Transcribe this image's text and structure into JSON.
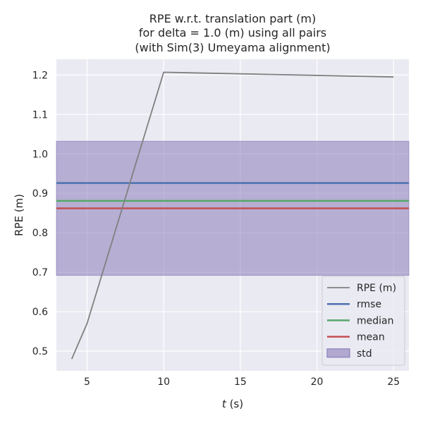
{
  "chart_data": {
    "type": "line",
    "title": "RPE w.r.t. translation part (m)",
    "subtitle_lines": [
      "for delta = 1.0 (m) using all pairs",
      "(with Sim(3) Umeyama alignment)"
    ],
    "xlabel_var": "t",
    "xlabel_unit": " (s)",
    "ylabel": "RPE (m)",
    "xlim": [
      3,
      26
    ],
    "ylim": [
      0.45,
      1.24
    ],
    "xticks": [
      5,
      10,
      15,
      20,
      25
    ],
    "yticks": [
      0.5,
      0.6,
      0.7,
      0.8,
      0.9,
      1.0,
      1.1,
      1.2
    ],
    "ytick_labels": [
      "0.5",
      "0.6",
      "0.7",
      "0.8",
      "0.9",
      "1.0",
      "1.1",
      "1.2"
    ],
    "grid": true,
    "legend_position": "lower-right",
    "series": [
      {
        "name": "RPE (m)",
        "color": "#808080",
        "x": [
          4,
          5,
          10,
          25
        ],
        "y": [
          0.48,
          0.57,
          1.207,
          1.195
        ]
      }
    ],
    "hlines": [
      {
        "name": "rmse",
        "color": "#4c72b0",
        "value": 0.926
      },
      {
        "name": "median",
        "color": "#55a868",
        "value": 0.881
      },
      {
        "name": "mean",
        "color": "#c44e52",
        "value": 0.862
      }
    ],
    "band": {
      "name": "std",
      "color": "#8172b3",
      "low": 0.692,
      "high": 1.032
    }
  }
}
